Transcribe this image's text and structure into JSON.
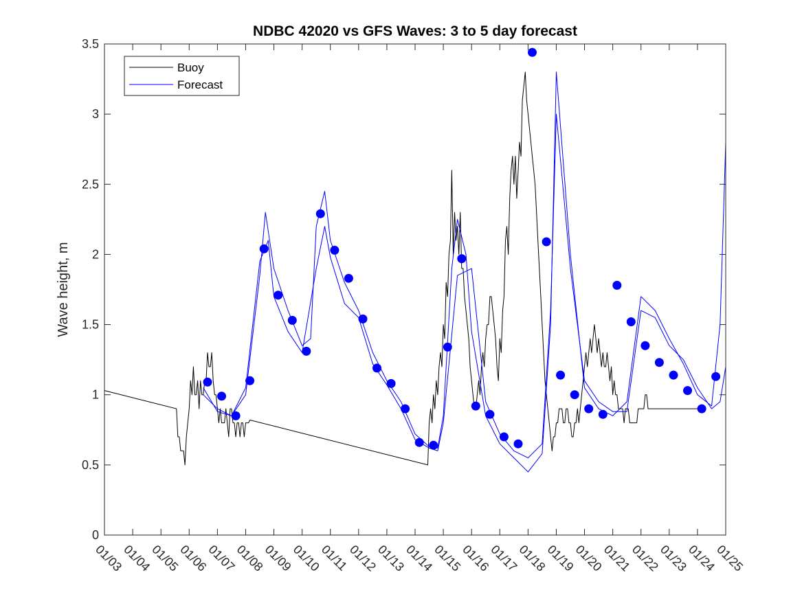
{
  "chart_data": {
    "type": "line",
    "title": "NDBC 42020 vs GFS Waves: 3 to 5 day forecast",
    "xlabel": "",
    "ylabel": "Wave height, m",
    "xlim": [
      0,
      22
    ],
    "ylim": [
      0,
      3.5
    ],
    "yticks": [
      0,
      0.5,
      1,
      1.5,
      2,
      2.5,
      3,
      3.5
    ],
    "ytick_labels": [
      "0",
      "0.5",
      "1",
      "1.5",
      "2",
      "2.5",
      "3",
      "3.5"
    ],
    "xticks": [
      0,
      1,
      2,
      3,
      4,
      5,
      6,
      7,
      8,
      9,
      10,
      11,
      12,
      13,
      14,
      15,
      16,
      17,
      18,
      19,
      20,
      21,
      22
    ],
    "xtick_labels": [
      "01/03",
      "01/04",
      "01/05",
      "01/06",
      "01/07",
      "01/08",
      "01/09",
      "01/10",
      "01/11",
      "01/12",
      "01/13",
      "01/14",
      "01/15",
      "01/16",
      "01/17",
      "01/18",
      "01/19",
      "01/20",
      "01/21",
      "01/22",
      "01/23",
      "01/24",
      "01/25"
    ],
    "grid": false,
    "legend": {
      "location": "top-left",
      "entries": [
        "Buoy",
        "Forecast"
      ]
    },
    "colors": {
      "buoy": "#000000",
      "forecast": "#0000ff",
      "axes": "#262626"
    },
    "series": [
      {
        "name": "Buoy",
        "color": "#000000",
        "x": [
          0,
          2.55,
          2.6,
          2.65,
          2.7,
          2.75,
          2.8,
          2.85,
          2.9,
          2.95,
          3.0,
          3.05,
          3.1,
          3.15,
          3.2,
          3.25,
          3.3,
          3.35,
          3.4,
          3.45,
          3.5,
          3.55,
          3.6,
          3.65,
          3.7,
          3.75,
          3.8,
          3.85,
          3.9,
          3.95,
          4.0,
          4.05,
          4.1,
          4.15,
          4.2,
          4.25,
          4.3,
          4.35,
          4.4,
          4.45,
          4.5,
          4.55,
          4.6,
          4.65,
          4.7,
          4.75,
          4.8,
          4.85,
          4.9,
          4.95,
          5.0,
          5.05,
          5.1,
          5.15,
          11.45,
          11.5,
          11.55,
          11.6,
          11.65,
          11.7,
          11.75,
          11.8,
          11.85,
          11.9,
          11.95,
          12.0,
          12.05,
          12.1,
          12.15,
          12.2,
          12.25,
          12.3,
          12.35,
          12.4,
          12.45,
          12.5,
          12.55,
          12.6,
          12.65,
          12.7,
          12.75,
          12.8,
          12.85,
          12.9,
          12.95,
          13.0,
          13.05,
          13.1,
          13.15,
          13.2,
          13.25,
          13.3,
          13.35,
          13.4,
          13.45,
          13.5,
          13.55,
          13.6,
          13.65,
          13.7,
          13.75,
          13.8,
          13.85,
          13.9,
          13.95,
          14.0,
          14.05,
          14.1,
          14.15,
          14.2,
          14.25,
          14.3,
          14.35,
          14.4,
          14.45,
          14.5,
          14.55,
          14.6,
          14.65,
          14.7,
          14.75,
          14.8,
          14.85,
          14.9,
          14.95,
          15.0,
          15.05,
          15.1,
          15.15,
          15.2,
          15.25,
          15.3,
          15.35,
          15.4,
          15.45,
          15.5,
          15.55,
          15.6,
          15.65,
          15.7,
          15.75,
          15.8,
          15.85,
          15.9,
          15.95,
          16.0,
          16.05,
          16.1,
          16.15,
          16.2,
          16.25,
          16.3,
          16.35,
          16.4,
          16.45,
          16.5,
          16.55,
          16.6,
          16.65,
          16.7,
          16.75,
          16.8,
          16.85,
          16.9,
          16.95,
          17.0,
          17.05,
          17.1,
          17.15,
          17.2,
          17.25,
          17.3,
          17.35,
          17.4,
          17.45,
          17.5,
          17.55,
          17.6,
          17.65,
          17.7,
          17.75,
          17.8,
          17.85,
          17.9,
          17.95,
          18.0,
          18.05,
          18.1,
          18.15,
          18.2,
          18.25,
          18.3,
          18.35,
          18.4,
          18.45,
          18.5,
          18.55,
          18.6,
          18.65,
          18.7,
          18.75,
          18.8,
          18.85,
          18.9,
          18.95,
          19.0,
          19.05,
          19.1,
          19.15,
          19.2,
          19.25,
          19.3,
          19.35,
          19.4,
          19.45,
          19.5,
          19.55,
          19.6,
          19.65,
          19.7,
          19.75,
          19.8,
          19.85,
          19.9,
          19.95,
          20.0,
          20.05,
          20.1,
          20.15,
          20.2,
          20.25,
          20.3,
          20.35,
          20.4,
          20.45,
          20.5,
          20.55,
          20.6,
          20.65,
          20.7,
          20.75,
          20.8,
          20.85,
          20.9,
          20.95,
          21.0
        ],
        "y": [
          1.03,
          0.9,
          0.7,
          0.7,
          0.6,
          0.6,
          0.6,
          0.5,
          0.7,
          0.8,
          0.9,
          1.1,
          1.0,
          1.2,
          1.0,
          1.0,
          1.1,
          0.9,
          1.1,
          1.0,
          1.0,
          1.1,
          1.1,
          1.3,
          1.2,
          1.2,
          1.3,
          1.1,
          1.0,
          1.0,
          0.9,
          0.8,
          0.9,
          0.8,
          0.8,
          0.8,
          0.9,
          0.8,
          0.7,
          0.9,
          0.9,
          0.8,
          0.8,
          0.7,
          0.8,
          0.8,
          0.7,
          0.8,
          0.8,
          0.7,
          0.8,
          0.8,
          0.8,
          0.82,
          0.5,
          0.8,
          0.9,
          0.8,
          1.0,
          0.9,
          1.1,
          1.0,
          1.2,
          1.3,
          1.2,
          1.5,
          1.4,
          1.8,
          1.7,
          2.0,
          2.1,
          2.6,
          2.0,
          2.3,
          2.1,
          2.2,
          2.0,
          2.3,
          1.9,
          1.9,
          1.7,
          1.6,
          1.5,
          1.4,
          1.2,
          1.1,
          1.0,
          0.9,
          0.9,
          1.0,
          1.1,
          1.0,
          1.2,
          1.3,
          1.2,
          1.4,
          1.5,
          1.5,
          1.7,
          1.7,
          1.6,
          1.5,
          1.4,
          1.2,
          1.1,
          1.4,
          1.3,
          1.6,
          1.7,
          2.1,
          2.2,
          2.0,
          2.4,
          2.6,
          2.7,
          2.5,
          2.7,
          2.4,
          2.6,
          2.8,
          2.7,
          3.1,
          3.2,
          3.3,
          3.1,
          3.0,
          2.9,
          2.8,
          2.7,
          2.6,
          2.5,
          2.3,
          2.1,
          1.9,
          1.7,
          1.5,
          1.3,
          1.1,
          1.0,
          0.9,
          0.8,
          0.7,
          0.6,
          0.7,
          0.7,
          0.8,
          0.8,
          0.9,
          0.9,
          0.9,
          0.8,
          0.8,
          0.9,
          0.9,
          0.8,
          0.8,
          0.7,
          0.7,
          0.8,
          0.8,
          0.9,
          0.8,
          0.9,
          1.0,
          1.1,
          1.2,
          1.3,
          1.2,
          1.3,
          1.4,
          1.3,
          1.4,
          1.5,
          1.4,
          1.3,
          1.4,
          1.3,
          1.2,
          1.3,
          1.2,
          1.2,
          1.3,
          1.2,
          1.1,
          1.2,
          1.0,
          1.1,
          1.0,
          1.0,
          0.9,
          0.9,
          0.9,
          0.9,
          0.8,
          0.9,
          0.9,
          0.9,
          0.8,
          0.8,
          0.8,
          0.8,
          0.8,
          0.8,
          0.9,
          0.9,
          0.9,
          0.9,
          0.9,
          1.0,
          1.0,
          0.9,
          0.9,
          0.9,
          0.9,
          0.9,
          0.9,
          0.9,
          0.9,
          0.9,
          0.9,
          0.9,
          0.9,
          0.9,
          0.9,
          0.9,
          0.9,
          0.9,
          0.9,
          0.9,
          0.9,
          0.9,
          0.9,
          0.9,
          0.9,
          0.9,
          0.9,
          0.9,
          0.9,
          0.9,
          0.9,
          0.9,
          0.9,
          0.9,
          0.9,
          0.9,
          0.9
        ]
      },
      {
        "name": "Forecast",
        "color": "#0000ff",
        "x": [
          3.5,
          4.0,
          4.5,
          5.0,
          5.5,
          5.8,
          6.0,
          6.5,
          7.0,
          7.5,
          7.8,
          8.0,
          8.5,
          9.0,
          9.5,
          10.0,
          10.5,
          11.0,
          11.5,
          11.8,
          12.0,
          12.5,
          13.0,
          13.5,
          14.0,
          14.5,
          15.0,
          15.5,
          15.8,
          16.0,
          16.5,
          17.0,
          17.5,
          18.0,
          18.5,
          19.0,
          19.5,
          20.0,
          20.5,
          21.0,
          21.5,
          21.8,
          22.0
        ],
        "y": [
          1.05,
          0.88,
          0.85,
          1.05,
          1.95,
          2.1,
          1.7,
          1.45,
          1.3,
          1.9,
          2.2,
          1.98,
          1.65,
          1.55,
          1.22,
          1.07,
          0.9,
          0.68,
          0.62,
          0.6,
          0.8,
          1.85,
          1.9,
          0.95,
          0.72,
          0.6,
          0.55,
          0.65,
          1.6,
          3.0,
          1.9,
          1.1,
          0.95,
          0.88,
          0.88,
          1.6,
          1.55,
          1.35,
          1.25,
          1.05,
          0.9,
          0.95,
          1.2
        ]
      },
      {
        "name": "Forecast",
        "color": "#0000ff",
        "x": [
          3.5,
          4.0,
          4.5,
          5.0,
          5.5,
          5.7,
          6.0,
          6.5,
          7.0,
          7.3,
          7.5,
          7.8,
          8.0,
          8.5,
          9.0,
          9.5,
          10.0,
          10.5,
          11.0,
          11.5,
          11.8,
          12.0,
          12.3,
          12.5,
          12.8,
          13.0,
          13.5,
          14.0,
          14.5,
          15.0,
          15.5,
          15.8,
          16.0,
          16.5,
          17.0,
          17.5,
          18.0,
          18.5,
          19.0,
          19.5,
          20.0,
          20.5,
          21.0,
          21.5,
          21.8,
          22.0
        ],
        "y": [
          1.0,
          0.9,
          0.85,
          1.0,
          1.85,
          2.3,
          1.9,
          1.6,
          1.35,
          1.4,
          2.2,
          2.45,
          2.1,
          1.8,
          1.6,
          1.3,
          1.1,
          0.95,
          0.72,
          0.63,
          0.62,
          0.85,
          1.9,
          2.25,
          2.0,
          1.45,
          0.85,
          0.65,
          0.55,
          0.45,
          0.58,
          1.5,
          3.3,
          2.0,
          1.05,
          0.9,
          0.85,
          0.95,
          1.7,
          1.6,
          1.4,
          1.22,
          1.0,
          0.92,
          1.5,
          2.8
        ]
      }
    ],
    "forecast_points": {
      "x": [
        3.65,
        4.15,
        4.65,
        5.15,
        5.65,
        6.15,
        6.65,
        7.15,
        7.65,
        8.15,
        8.65,
        9.15,
        9.65,
        10.15,
        10.65,
        11.15,
        11.65,
        12.15,
        12.65,
        13.15,
        13.65,
        14.15,
        14.65,
        15.15,
        15.65,
        16.15,
        16.65,
        17.15,
        17.65,
        18.15,
        18.65,
        19.15,
        19.65,
        20.15,
        20.65,
        21.15,
        21.65
      ],
      "y": [
        1.09,
        0.99,
        0.85,
        1.1,
        2.04,
        1.71,
        1.53,
        1.31,
        2.29,
        2.03,
        1.83,
        1.54,
        1.19,
        1.08,
        0.9,
        0.66,
        0.64,
        1.34,
        1.97,
        0.92,
        0.86,
        0.7,
        0.65,
        3.44,
        2.09,
        1.14,
        1.0,
        0.9,
        0.86,
        1.78,
        1.52,
        1.35,
        1.23,
        1.14,
        1.03,
        0.9,
        1.13
      ]
    }
  }
}
